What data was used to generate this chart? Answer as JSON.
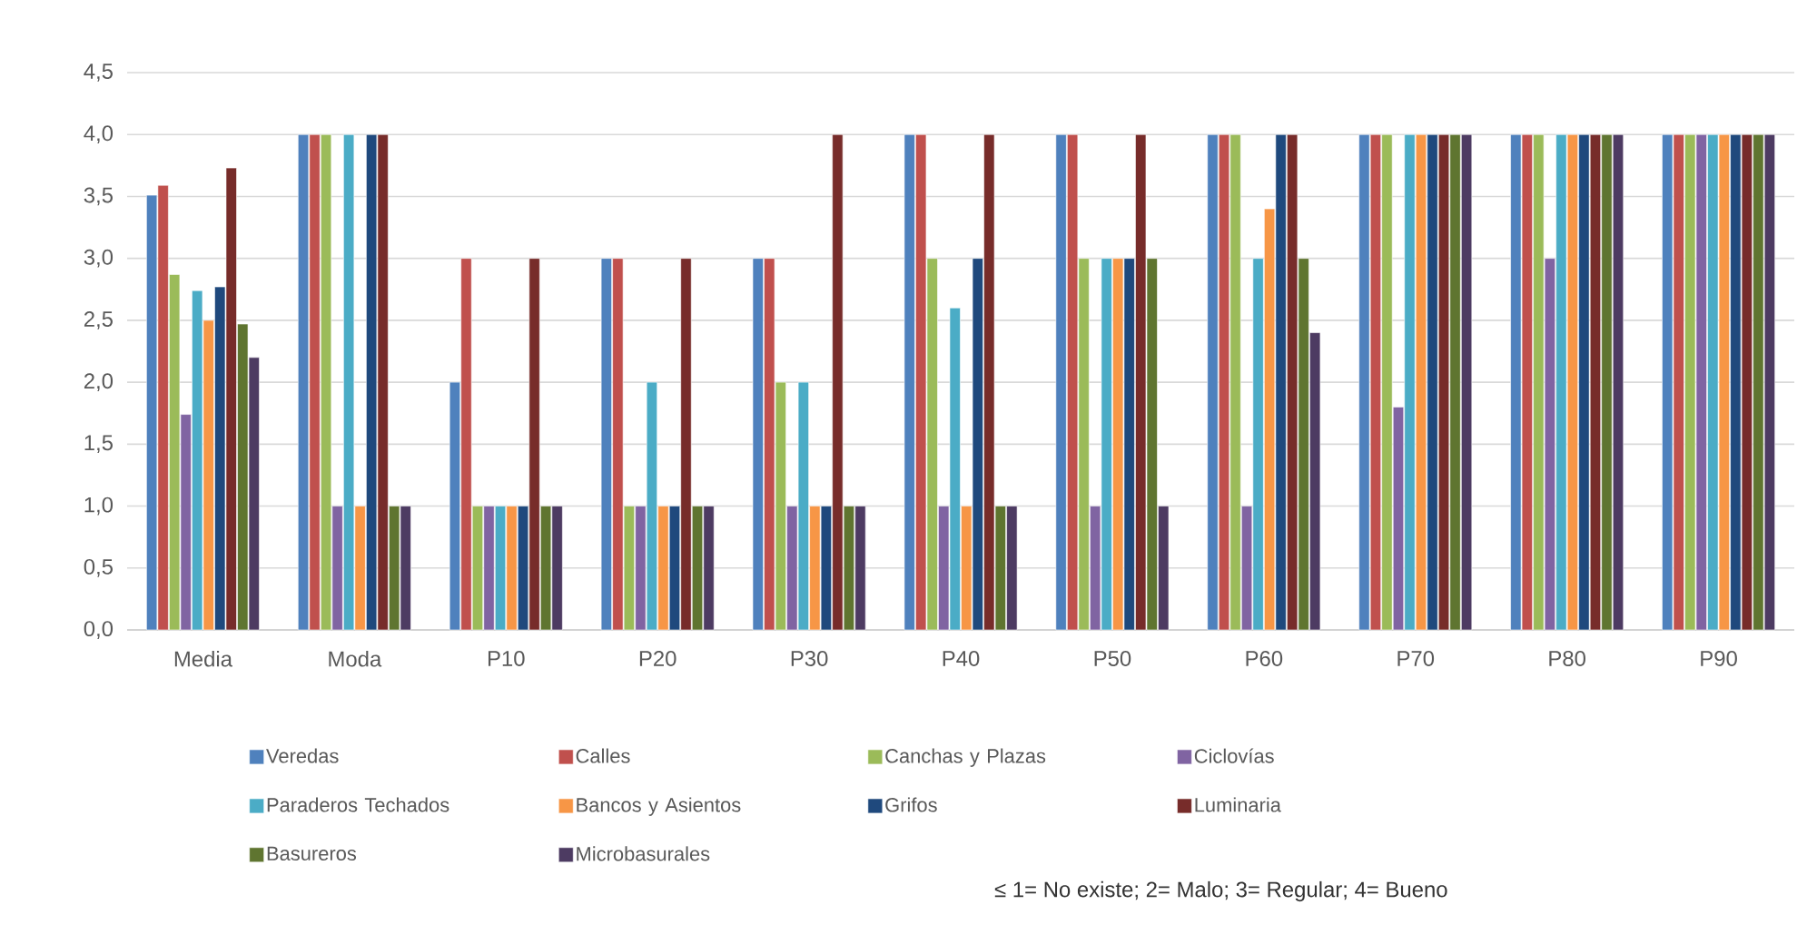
{
  "chart_data": {
    "type": "bar",
    "categories": [
      "Media",
      "Moda",
      "P10",
      "P20",
      "P30",
      "P40",
      "P50",
      "P60",
      "P70",
      "P80",
      "P90"
    ],
    "series": [
      {
        "name": "Veredas",
        "color": "#4f81bd",
        "values": [
          3.51,
          4,
          2,
          3,
          3,
          4,
          4,
          4,
          4,
          4,
          4
        ]
      },
      {
        "name": "Calles",
        "color": "#c0504d",
        "values": [
          3.59,
          4,
          3,
          3,
          3,
          4,
          4,
          4,
          4,
          4,
          4
        ]
      },
      {
        "name": "Canchas y Plazas",
        "color": "#9bbb59",
        "values": [
          2.87,
          4,
          1,
          1,
          2,
          3,
          3,
          4,
          4,
          4,
          4
        ]
      },
      {
        "name": "Ciclovías",
        "color": "#8064a2",
        "values": [
          1.74,
          1,
          1,
          1,
          1,
          1,
          1,
          1,
          1.8,
          3,
          4
        ]
      },
      {
        "name": "Paraderos Techados",
        "color": "#4bacc6",
        "values": [
          2.74,
          4,
          1,
          2,
          2,
          2.6,
          3,
          3,
          4,
          4,
          4
        ]
      },
      {
        "name": "Bancos y Asientos",
        "color": "#f79646",
        "values": [
          2.5,
          1,
          1,
          1,
          1,
          1,
          3,
          3.4,
          4,
          4,
          4
        ]
      },
      {
        "name": "Grifos",
        "color": "#1f497d",
        "values": [
          2.77,
          4,
          1,
          1,
          1,
          3,
          3,
          4,
          4,
          4,
          4
        ]
      },
      {
        "name": "Luminaria",
        "color": "#772c2a",
        "values": [
          3.73,
          4,
          3,
          3,
          4,
          4,
          4,
          4,
          4,
          4,
          4
        ]
      },
      {
        "name": "Basureros",
        "color": "#5f7530",
        "values": [
          2.47,
          1,
          1,
          1,
          1,
          1,
          3,
          3,
          4,
          4,
          4
        ]
      },
      {
        "name": "Microbasurales",
        "color": "#4d3b62",
        "values": [
          2.2,
          1,
          1,
          1,
          1,
          1,
          1,
          2.4,
          4,
          4,
          4
        ]
      }
    ],
    "ylim": [
      0,
      4.5
    ],
    "yticks": [
      {
        "value": 0,
        "label": "0,0"
      },
      {
        "value": 0.5,
        "label": "0,5"
      },
      {
        "value": 1,
        "label": "1,0"
      },
      {
        "value": 1.5,
        "label": "1,5"
      },
      {
        "value": 2,
        "label": "2,0"
      },
      {
        "value": 2.5,
        "label": "2,5"
      },
      {
        "value": 3,
        "label": "3,0"
      },
      {
        "value": 3.5,
        "label": "3,5"
      },
      {
        "value": 4,
        "label": "4,0"
      },
      {
        "value": 4.5,
        "label": "4,5"
      }
    ],
    "grid": "y",
    "legend": "bottom",
    "annotations": [
      "≤ 1= No existe; 2= Malo; 3= Regular; 4= Bueno"
    ]
  }
}
